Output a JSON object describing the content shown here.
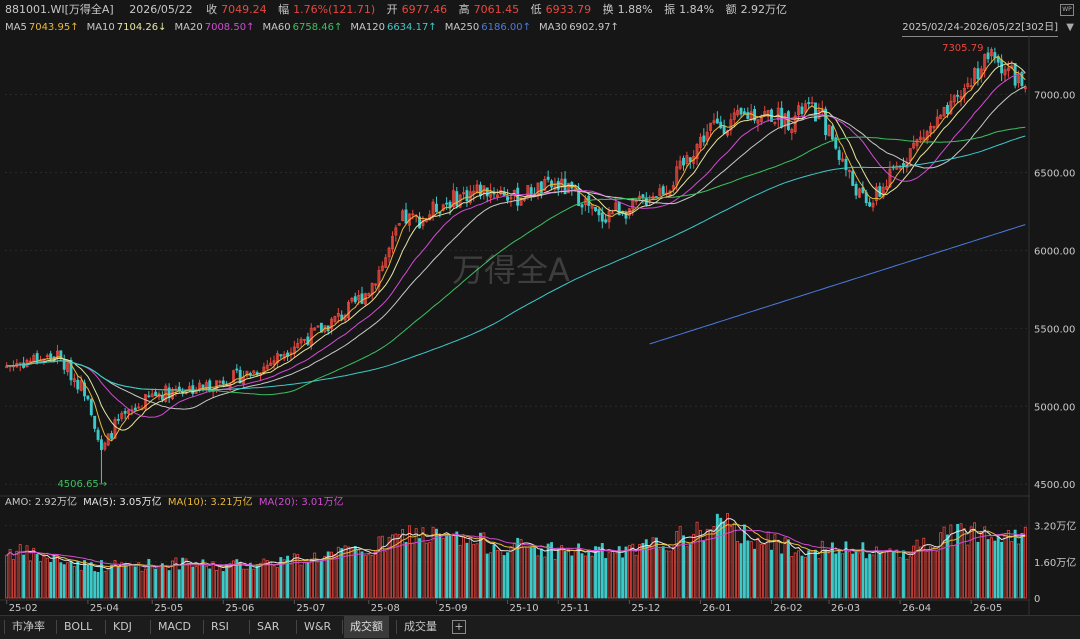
{
  "header": {
    "code": "881001.WI[万得全A]",
    "date": "2026/05/22",
    "close_label": "收",
    "close": "7049.24",
    "chg_label": "幅",
    "chg": "1.76%(121.71)",
    "open_label": "开",
    "open": "6977.46",
    "high_label": "高",
    "high": "7061.45",
    "low_label": "低",
    "low": "6933.79",
    "turn_label": "换",
    "turn": "1.88%",
    "amp_label": "振",
    "amp": "1.84%",
    "amt_label": "额",
    "amt": "2.92万亿",
    "range": "2025/02/24-2026/05/22[302日]",
    "watermark": "万得全A"
  },
  "ma_legend": [
    {
      "name": "MA5",
      "value": "7043.95↑",
      "color": "#e8b93c"
    },
    {
      "name": "MA10",
      "value": "7104.26↓",
      "color": "#e6e6a0"
    },
    {
      "name": "MA20",
      "value": "7008.50↑",
      "color": "#d24ad4"
    },
    {
      "name": "MA60",
      "value": "6758.46↑",
      "color": "#3cc060"
    },
    {
      "name": "MA120",
      "value": "6634.17↑",
      "color": "#3ec9c9"
    },
    {
      "name": "MA250",
      "value": "6186.00↑",
      "color": "#4a7be0"
    },
    {
      "name": "MA30",
      "value": "6902.97↑",
      "color": "#c8c8c8"
    }
  ],
  "amo": {
    "amo_label": "AMO: 2.92万亿",
    "ma5": "MA(5): 3.05万亿",
    "ma10": "MA(10): 3.21万亿",
    "ma20": "MA(20): 3.01万亿"
  },
  "colors": {
    "up": "#e8473f",
    "down": "#3ec9c9",
    "bg": "#161616"
  },
  "chart_data": {
    "type": "candlestick",
    "price_ticks": [
      4500,
      5000,
      5500,
      6000,
      6500,
      7000
    ],
    "price_tick_labels": [
      "4500.00",
      "5000.00",
      "5500.00",
      "6000.00",
      "6500.00",
      "7000.00"
    ],
    "ylim": [
      4450,
      7350
    ],
    "vol_ticks": [
      "0",
      "1.60万亿",
      "3.20万亿"
    ],
    "vol_tick_values": [
      0,
      1.6,
      3.2
    ],
    "vol_ylim": [
      0,
      3.8
    ],
    "x_labels": [
      "25-02",
      "25-04",
      "25-05",
      "25-06",
      "25-07",
      "25-08",
      "25-09",
      "25-10",
      "25-11",
      "25-12",
      "26-01",
      "26-02",
      "26-03",
      "26-04",
      "26-05"
    ],
    "x_label_index": [
      0,
      24,
      43,
      64,
      85,
      107,
      127,
      148,
      163,
      184,
      205,
      226,
      243,
      264,
      285
    ],
    "n_days": 302,
    "high_annotation": {
      "label": "7305.79",
      "value": 7305.79,
      "index": 290
    },
    "low_annotation": {
      "label": "4506.65→",
      "value": 4506.65,
      "index": 28
    },
    "close_anchors": [
      [
        0,
        5260
      ],
      [
        8,
        5300
      ],
      [
        15,
        5320
      ],
      [
        20,
        5180
      ],
      [
        24,
        5080
      ],
      [
        28,
        4700
      ],
      [
        32,
        4880
      ],
      [
        38,
        4980
      ],
      [
        43,
        5070
      ],
      [
        50,
        5110
      ],
      [
        58,
        5120
      ],
      [
        64,
        5170
      ],
      [
        70,
        5200
      ],
      [
        76,
        5250
      ],
      [
        85,
        5400
      ],
      [
        92,
        5480
      ],
      [
        100,
        5600
      ],
      [
        107,
        5750
      ],
      [
        112,
        5950
      ],
      [
        117,
        6200
      ],
      [
        123,
        6200
      ],
      [
        127,
        6280
      ],
      [
        133,
        6340
      ],
      [
        140,
        6390
      ],
      [
        146,
        6380
      ],
      [
        150,
        6330
      ],
      [
        156,
        6390
      ],
      [
        163,
        6420
      ],
      [
        170,
        6330
      ],
      [
        175,
        6200
      ],
      [
        180,
        6270
      ],
      [
        184,
        6260
      ],
      [
        190,
        6350
      ],
      [
        196,
        6420
      ],
      [
        203,
        6650
      ],
      [
        208,
        6790
      ],
      [
        214,
        6820
      ],
      [
        220,
        6880
      ],
      [
        226,
        6870
      ],
      [
        232,
        6830
      ],
      [
        236,
        6920
      ],
      [
        241,
        6850
      ],
      [
        246,
        6620
      ],
      [
        250,
        6430
      ],
      [
        254,
        6290
      ],
      [
        258,
        6370
      ],
      [
        262,
        6500
      ],
      [
        267,
        6650
      ],
      [
        273,
        6780
      ],
      [
        279,
        6900
      ],
      [
        285,
        7100
      ],
      [
        290,
        7250
      ],
      [
        295,
        7180
      ],
      [
        301,
        7049.24
      ]
    ],
    "amo_anchors": [
      [
        0,
        2.1
      ],
      [
        25,
        1.4
      ],
      [
        50,
        1.5
      ],
      [
        64,
        1.4
      ],
      [
        85,
        1.7
      ],
      [
        107,
        2.1
      ],
      [
        120,
        2.9
      ],
      [
        130,
        2.6
      ],
      [
        148,
        2.3
      ],
      [
        163,
        2.1
      ],
      [
        184,
        2.0
      ],
      [
        205,
        2.9
      ],
      [
        210,
        3.3
      ],
      [
        226,
        2.4
      ],
      [
        243,
        2.1
      ],
      [
        264,
        2.0
      ],
      [
        280,
        2.8
      ],
      [
        290,
        3.1
      ],
      [
        301,
        2.92
      ]
    ],
    "ma_periods": [
      5,
      10,
      20,
      30,
      60,
      120,
      250
    ]
  },
  "tabs": [
    {
      "label": "市净率",
      "name": "tab-pb"
    },
    {
      "label": "BOLL",
      "name": "tab-boll"
    },
    {
      "label": "KDJ",
      "name": "tab-kdj"
    },
    {
      "label": "MACD",
      "name": "tab-macd"
    },
    {
      "label": "RSI",
      "name": "tab-rsi"
    },
    {
      "label": "SAR",
      "name": "tab-sar"
    },
    {
      "label": "W&R",
      "name": "tab-wr"
    },
    {
      "label": "成交额",
      "name": "tab-amount"
    },
    {
      "label": "成交量",
      "name": "tab-volume"
    }
  ],
  "active_tab": 7
}
